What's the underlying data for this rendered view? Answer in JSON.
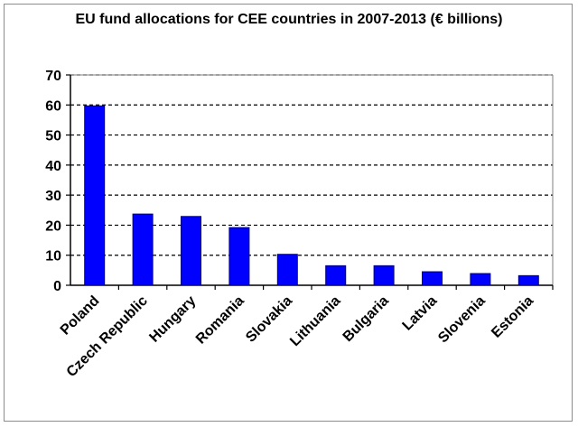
{
  "chart_data": {
    "type": "bar",
    "title": "EU fund allocations for CEE countries in 2007-2013 (€ billions)",
    "xlabel": "",
    "ylabel": "",
    "categories": [
      "Poland",
      "Czech Republic",
      "Hungary",
      "Romania",
      "Slovakia",
      "Lithuania",
      "Bulgaria",
      "Latvia",
      "Slovenia",
      "Estonia"
    ],
    "values": [
      59.7,
      23.7,
      22.9,
      19.2,
      10.3,
      6.5,
      6.5,
      4.5,
      3.9,
      3.2
    ],
    "ylim": [
      0,
      70
    ],
    "yticks": [
      0,
      10,
      20,
      30,
      40,
      50,
      60,
      70
    ],
    "grid": true,
    "legend": "none",
    "bar_color": "#0000ff",
    "bar_stroke": "#00007a",
    "grid_color": "#000000"
  }
}
